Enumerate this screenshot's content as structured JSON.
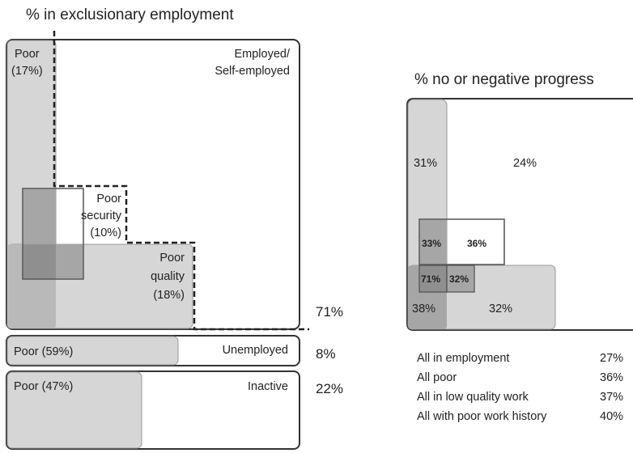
{
  "left_panel": {
    "title": "% in exclusionary employment",
    "employed_label_1": "Employed/",
    "employed_label_2": "Self-employed",
    "poor_label": "Poor",
    "poor_pct": "(17%)",
    "security_label_1": "Poor",
    "security_label_2": "security",
    "security_pct": "(10%)",
    "quality_label_1": "Poor",
    "quality_label_2": "quality",
    "quality_pct": "(18%)",
    "employed_total": "71%",
    "unemployed_poor": "Poor (59%)",
    "unemployed_label": "Unemployed",
    "unemployed_total": "8%",
    "inactive_poor": "Poor (47%)",
    "inactive_label": "Inactive",
    "inactive_total": "22%"
  },
  "right_panel": {
    "title": "% no or negative progress",
    "poor_only": "31%",
    "employed_only": "24%",
    "poor_security": "33%",
    "security_only": "36%",
    "poor_security_quality": "71%",
    "security_quality": "32%",
    "poor_quality": "38%",
    "quality_only": "32%",
    "summary": [
      {
        "label": "All in employment",
        "value": "27%"
      },
      {
        "label": "All poor",
        "value": "36%"
      },
      {
        "label": "All in low quality work",
        "value": "37%"
      },
      {
        "label": "All with poor work history",
        "value": "40%"
      }
    ]
  }
}
